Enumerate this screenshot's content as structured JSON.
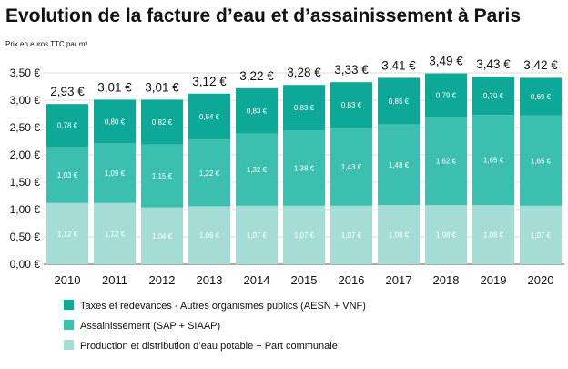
{
  "chart_data": {
    "type": "bar",
    "stacked": true,
    "title": "Evolution de la facture d’eau et d’assainissement à Paris",
    "ylabel": "Prix en euros TTC par m³",
    "xlabel": "",
    "ylim": [
      0,
      3.5
    ],
    "y_ticks": [
      "0,00 €",
      "0,50 €",
      "1,00 €",
      "1,50 €",
      "2,00 €",
      "2,50 €",
      "3,00 €",
      "3,50 €"
    ],
    "grid": true,
    "legend_position": "bottom",
    "categories": [
      "2010",
      "2011",
      "2012",
      "2013",
      "2014",
      "2015",
      "2016",
      "2017",
      "2018",
      "2019",
      "2020"
    ],
    "series": [
      {
        "name": "Production et distribution d’eau potable + Part communale",
        "color": "#a6dcd6",
        "values": [
          1.12,
          1.12,
          1.04,
          1.06,
          1.07,
          1.07,
          1.07,
          1.08,
          1.08,
          1.08,
          1.07
        ],
        "labels": [
          "1,12 €",
          "1,12 €",
          "1,04 €",
          "1,06 €",
          "1,07 €",
          "1,07 €",
          "1,07 €",
          "1,08 €",
          "1,08 €",
          "1,08 €",
          "1,07 €"
        ]
      },
      {
        "name": "Assainissement (SAP + SIAAP)",
        "color": "#3dbfb0",
        "values": [
          1.03,
          1.09,
          1.15,
          1.22,
          1.32,
          1.38,
          1.43,
          1.48,
          1.62,
          1.65,
          1.65
        ],
        "labels": [
          "1,03 €",
          "1,09 €",
          "1,15 €",
          "1,22 €",
          "1,32 €",
          "1,38 €",
          "1,43 €",
          "1,48 €",
          "1,62 €",
          "1,65 €",
          "1,65 €"
        ]
      },
      {
        "name": "Taxes et redevances - Autres organismes publics (AESN + VNF)",
        "color": "#0da897",
        "values": [
          0.78,
          0.8,
          0.82,
          0.84,
          0.83,
          0.83,
          0.83,
          0.85,
          0.79,
          0.7,
          0.69
        ],
        "labels": [
          "0,78 €",
          "0,80 €",
          "0,82 €",
          "0,84 €",
          "0,83 €",
          "0,83 €",
          "0,83 €",
          "0,85 €",
          "0,79 €",
          "0,70 €",
          "0,69 €"
        ]
      }
    ],
    "totals": [
      2.93,
      3.01,
      3.01,
      3.12,
      3.22,
      3.28,
      3.33,
      3.41,
      3.49,
      3.43,
      3.42
    ],
    "total_labels": [
      "2,93 €",
      "3,01 €",
      "3,01 €",
      "3,12 €",
      "3,22 €",
      "3,28 €",
      "3,33 €",
      "3,41 €",
      "3,49 €",
      "3,43 €",
      "3,42 €"
    ],
    "legend_order": [
      2,
      1,
      0
    ]
  }
}
